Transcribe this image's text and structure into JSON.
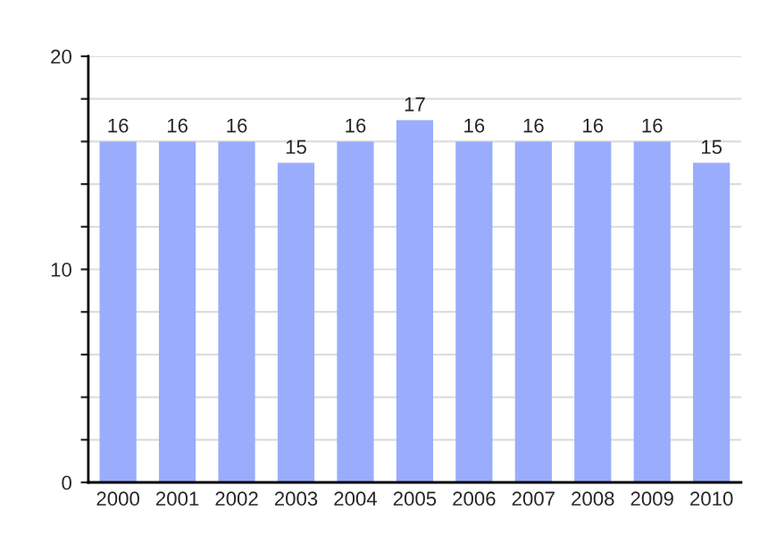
{
  "chart_data": {
    "type": "bar",
    "categories": [
      "2000",
      "2001",
      "2002",
      "2003",
      "2004",
      "2005",
      "2006",
      "2007",
      "2008",
      "2009",
      "2010"
    ],
    "values": [
      16,
      16,
      16,
      15,
      16,
      17,
      16,
      16,
      16,
      16,
      15
    ],
    "color": "#9aacfc",
    "data_labels": true,
    "ylim": [
      0,
      20
    ],
    "yticks": [
      0,
      {
        "value": 2,
        "label": null
      },
      {
        "value": 4,
        "label": null
      },
      {
        "value": 6,
        "label": null
      },
      {
        "value": 8,
        "label": null
      },
      10,
      {
        "value": 12,
        "label": null
      },
      {
        "value": 14,
        "label": null
      },
      {
        "value": 16,
        "label": null
      },
      {
        "value": 18,
        "label": null
      },
      20
    ],
    "grid": "y"
  }
}
